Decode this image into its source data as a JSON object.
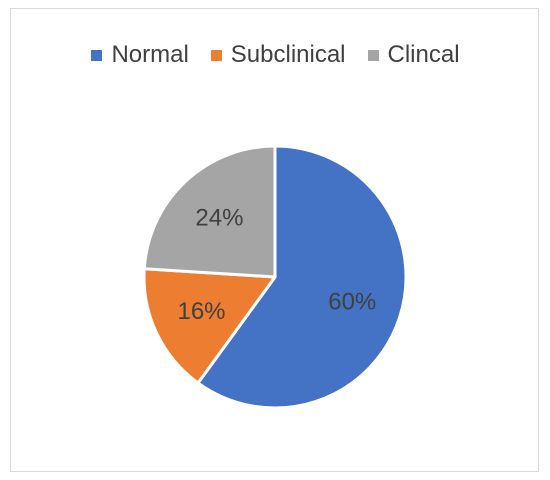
{
  "chart_data": {
    "type": "pie",
    "title": "",
    "legend_position": "top",
    "categories": [
      "Normal",
      "Subclinical",
      "Clincal"
    ],
    "values": [
      60,
      16,
      24
    ],
    "labels": [
      "60%",
      "16%",
      "24%"
    ],
    "colors": [
      "#4472c4",
      "#ed7d31",
      "#a5a5a5"
    ]
  }
}
